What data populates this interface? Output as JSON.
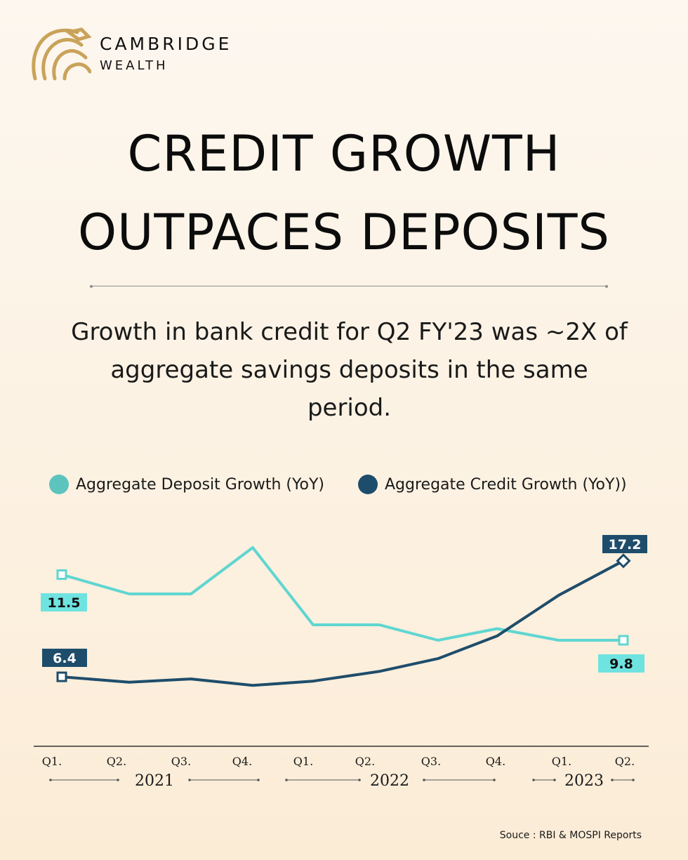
{
  "brand": {
    "name_line1": "CAMBRIDGE",
    "name_line2": "WEALTH",
    "logo_icon": "lion-head-icon",
    "logo_color": "#c9a35a"
  },
  "title": {
    "line1": "CREDIT GROWTH",
    "line2": "OUTPACES DEPOSITS"
  },
  "subtitle": "Growth in bank credit for Q2 FY'23 was ~2X of aggregate savings deposits in the same period.",
  "colors": {
    "deposit": "#5fd6d1",
    "credit": "#1e4d6b",
    "deposit_label_bg": "#6fe3e0",
    "credit_label_bg": "#1e4d6b"
  },
  "chart_data": {
    "type": "line",
    "categories": [
      "Q1.",
      "Q2.",
      "Q3.",
      "Q4.",
      "Q1.",
      "Q2.",
      "Q3.",
      "Q4.",
      "Q1.",
      "Q2."
    ],
    "year_groups": [
      {
        "label": "2021",
        "from": 0,
        "to": 3
      },
      {
        "label": "2022",
        "from": 4,
        "to": 7
      },
      {
        "label": "2023",
        "from": 8,
        "to": 9
      }
    ],
    "series": [
      {
        "name": "Aggregate Deposit Growth (YoY)",
        "values": [
          11.5,
          11.0,
          11.0,
          12.2,
          10.2,
          10.2,
          9.8,
          10.1,
          9.8,
          9.8
        ]
      },
      {
        "name": "Aggregate Credit Growth (YoY))",
        "values": [
          6.4,
          5.9,
          6.2,
          5.6,
          6.0,
          6.9,
          8.1,
          10.2,
          14.0,
          17.2
        ]
      }
    ],
    "data_labels": [
      {
        "series": 0,
        "index": 0,
        "text": "11.5"
      },
      {
        "series": 1,
        "index": 0,
        "text": "6.4"
      },
      {
        "series": 1,
        "index": 9,
        "text": "17.2"
      },
      {
        "series": 0,
        "index": 9,
        "text": "9.8"
      }
    ],
    "ylim": [
      0,
      20
    ],
    "legend": "top",
    "grid": false
  },
  "source": "Souce :  RBI & MOSPI Reports"
}
